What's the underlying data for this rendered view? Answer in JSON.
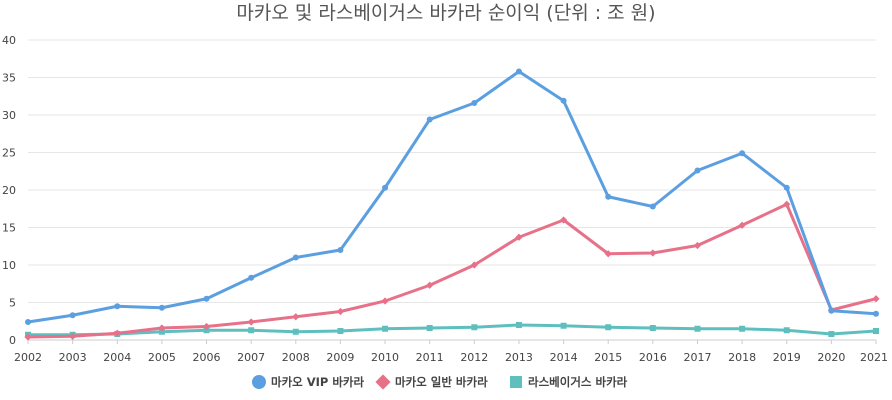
{
  "chart_data": {
    "type": "line",
    "title": "마카오 및 라스베이거스 바카라 순이익 (단위 : 조 원)",
    "xlabel": "",
    "ylabel": "",
    "x": [
      "2002",
      "2003",
      "2004",
      "2005",
      "2006",
      "2007",
      "2008",
      "2009",
      "2010",
      "2011",
      "2012",
      "2013",
      "2014",
      "2015",
      "2016",
      "2017",
      "2018",
      "2019",
      "2020",
      "2021"
    ],
    "ylim": [
      0,
      40
    ],
    "yticks": [
      0,
      5,
      10,
      15,
      20,
      25,
      30,
      35,
      40
    ],
    "grid": true,
    "legend_position": "bottom",
    "series": [
      {
        "name": "마카오 VIP 바카라",
        "color": "#5b9fe0",
        "marker": "circle",
        "values": [
          2.4,
          3.3,
          4.5,
          4.3,
          5.5,
          8.3,
          11.0,
          12.0,
          20.3,
          29.4,
          31.6,
          35.8,
          31.9,
          19.1,
          17.8,
          22.6,
          24.9,
          20.3,
          3.9,
          3.5
        ]
      },
      {
        "name": "마카오 일반 바카라",
        "color": "#e8718a",
        "marker": "diamond",
        "values": [
          0.4,
          0.5,
          0.9,
          1.6,
          1.8,
          2.4,
          3.1,
          3.8,
          5.2,
          7.3,
          10.0,
          13.7,
          16.0,
          11.5,
          11.6,
          12.6,
          15.3,
          18.1,
          4.0,
          5.5
        ]
      },
      {
        "name": "라스베이거스 바카라",
        "color": "#5fbfbf",
        "marker": "square",
        "values": [
          0.7,
          0.7,
          0.8,
          1.1,
          1.3,
          1.3,
          1.1,
          1.2,
          1.5,
          1.6,
          1.7,
          2.0,
          1.9,
          1.7,
          1.6,
          1.5,
          1.5,
          1.3,
          0.8,
          1.2
        ]
      }
    ]
  }
}
